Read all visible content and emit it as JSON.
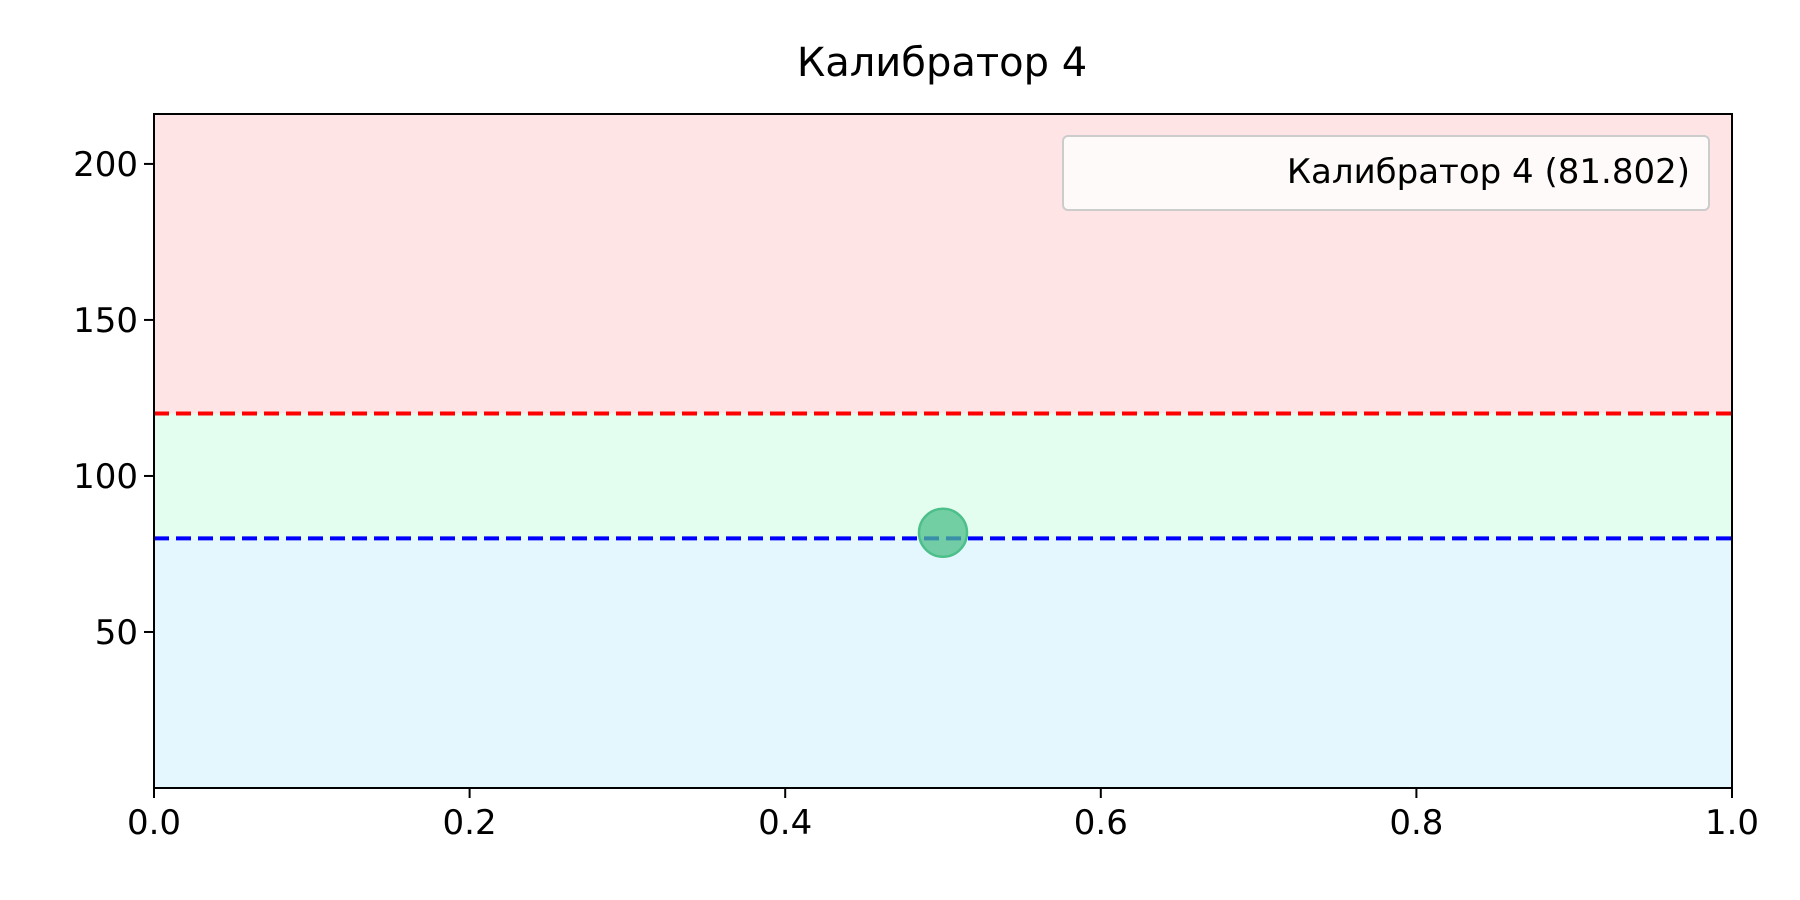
{
  "chart_data": {
    "type": "scatter",
    "title": "Калибратор 4",
    "xlabel": "",
    "ylabel": "",
    "xlim": [
      0.0,
      1.0
    ],
    "ylim": [
      0,
      216
    ],
    "x_ticks": [
      "0.0",
      "0.2",
      "0.4",
      "0.6",
      "0.8",
      "1.0"
    ],
    "x_tick_values": [
      0.0,
      0.2,
      0.4,
      0.6,
      0.8,
      1.0
    ],
    "y_ticks": [
      "50",
      "100",
      "150",
      "200"
    ],
    "y_tick_values": [
      50,
      100,
      150,
      200
    ],
    "grid": false,
    "legend_position": "top-right",
    "bands": [
      {
        "from": 0,
        "to": 80,
        "color": "#e4f7ff"
      },
      {
        "from": 80,
        "to": 120,
        "color": "#e3fdef"
      },
      {
        "from": 120,
        "to": 216,
        "color": "#ffe4e6"
      }
    ],
    "reference_lines": [
      {
        "y": 120,
        "color": "#ff0000",
        "style": "dashed"
      },
      {
        "y": 80,
        "color": "#0000ff",
        "style": "dashed"
      }
    ],
    "series": [
      {
        "name": "Калибратор 4 (81.802)",
        "color": "#4cbf8a",
        "x": [
          0.5
        ],
        "y": [
          81.802
        ]
      }
    ]
  }
}
